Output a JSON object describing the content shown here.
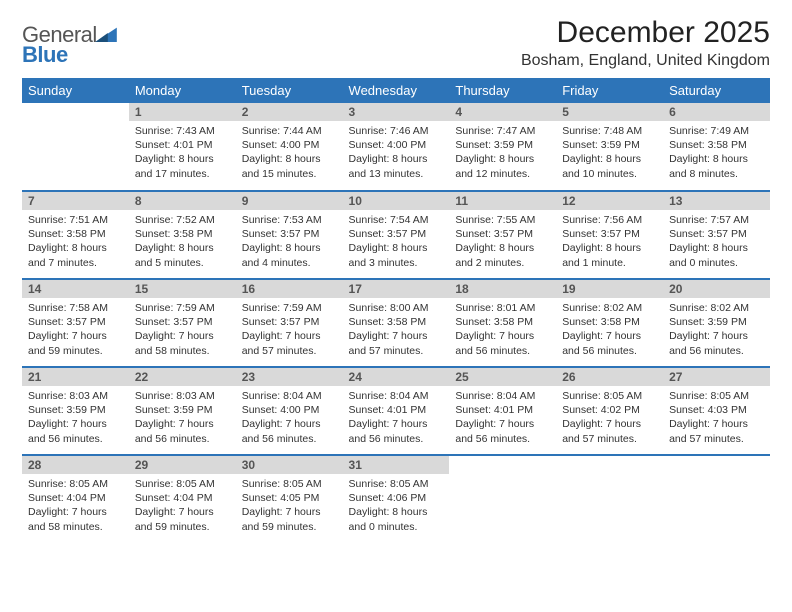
{
  "logo": {
    "line1": "General",
    "line2": "Blue"
  },
  "title": "December 2025",
  "location": "Bosham, England, United Kingdom",
  "colors": {
    "header_bg": "#2d74b8",
    "daynum_bg": "#d9d9d9",
    "logo_blue": "#2d74b8",
    "row_divider": "#2d74b8",
    "page_bg": "#ffffff"
  },
  "day_headers": [
    "Sunday",
    "Monday",
    "Tuesday",
    "Wednesday",
    "Thursday",
    "Friday",
    "Saturday"
  ],
  "weeks": [
    [
      null,
      {
        "n": "1",
        "sunrise": "Sunrise: 7:43 AM",
        "sunset": "Sunset: 4:01 PM",
        "day1": "Daylight: 8 hours",
        "day2": "and 17 minutes."
      },
      {
        "n": "2",
        "sunrise": "Sunrise: 7:44 AM",
        "sunset": "Sunset: 4:00 PM",
        "day1": "Daylight: 8 hours",
        "day2": "and 15 minutes."
      },
      {
        "n": "3",
        "sunrise": "Sunrise: 7:46 AM",
        "sunset": "Sunset: 4:00 PM",
        "day1": "Daylight: 8 hours",
        "day2": "and 13 minutes."
      },
      {
        "n": "4",
        "sunrise": "Sunrise: 7:47 AM",
        "sunset": "Sunset: 3:59 PM",
        "day1": "Daylight: 8 hours",
        "day2": "and 12 minutes."
      },
      {
        "n": "5",
        "sunrise": "Sunrise: 7:48 AM",
        "sunset": "Sunset: 3:59 PM",
        "day1": "Daylight: 8 hours",
        "day2": "and 10 minutes."
      },
      {
        "n": "6",
        "sunrise": "Sunrise: 7:49 AM",
        "sunset": "Sunset: 3:58 PM",
        "day1": "Daylight: 8 hours",
        "day2": "and 8 minutes."
      }
    ],
    [
      {
        "n": "7",
        "sunrise": "Sunrise: 7:51 AM",
        "sunset": "Sunset: 3:58 PM",
        "day1": "Daylight: 8 hours",
        "day2": "and 7 minutes."
      },
      {
        "n": "8",
        "sunrise": "Sunrise: 7:52 AM",
        "sunset": "Sunset: 3:58 PM",
        "day1": "Daylight: 8 hours",
        "day2": "and 5 minutes."
      },
      {
        "n": "9",
        "sunrise": "Sunrise: 7:53 AM",
        "sunset": "Sunset: 3:57 PM",
        "day1": "Daylight: 8 hours",
        "day2": "and 4 minutes."
      },
      {
        "n": "10",
        "sunrise": "Sunrise: 7:54 AM",
        "sunset": "Sunset: 3:57 PM",
        "day1": "Daylight: 8 hours",
        "day2": "and 3 minutes."
      },
      {
        "n": "11",
        "sunrise": "Sunrise: 7:55 AM",
        "sunset": "Sunset: 3:57 PM",
        "day1": "Daylight: 8 hours",
        "day2": "and 2 minutes."
      },
      {
        "n": "12",
        "sunrise": "Sunrise: 7:56 AM",
        "sunset": "Sunset: 3:57 PM",
        "day1": "Daylight: 8 hours",
        "day2": "and 1 minute."
      },
      {
        "n": "13",
        "sunrise": "Sunrise: 7:57 AM",
        "sunset": "Sunset: 3:57 PM",
        "day1": "Daylight: 8 hours",
        "day2": "and 0 minutes."
      }
    ],
    [
      {
        "n": "14",
        "sunrise": "Sunrise: 7:58 AM",
        "sunset": "Sunset: 3:57 PM",
        "day1": "Daylight: 7 hours",
        "day2": "and 59 minutes."
      },
      {
        "n": "15",
        "sunrise": "Sunrise: 7:59 AM",
        "sunset": "Sunset: 3:57 PM",
        "day1": "Daylight: 7 hours",
        "day2": "and 58 minutes."
      },
      {
        "n": "16",
        "sunrise": "Sunrise: 7:59 AM",
        "sunset": "Sunset: 3:57 PM",
        "day1": "Daylight: 7 hours",
        "day2": "and 57 minutes."
      },
      {
        "n": "17",
        "sunrise": "Sunrise: 8:00 AM",
        "sunset": "Sunset: 3:58 PM",
        "day1": "Daylight: 7 hours",
        "day2": "and 57 minutes."
      },
      {
        "n": "18",
        "sunrise": "Sunrise: 8:01 AM",
        "sunset": "Sunset: 3:58 PM",
        "day1": "Daylight: 7 hours",
        "day2": "and 56 minutes."
      },
      {
        "n": "19",
        "sunrise": "Sunrise: 8:02 AM",
        "sunset": "Sunset: 3:58 PM",
        "day1": "Daylight: 7 hours",
        "day2": "and 56 minutes."
      },
      {
        "n": "20",
        "sunrise": "Sunrise: 8:02 AM",
        "sunset": "Sunset: 3:59 PM",
        "day1": "Daylight: 7 hours",
        "day2": "and 56 minutes."
      }
    ],
    [
      {
        "n": "21",
        "sunrise": "Sunrise: 8:03 AM",
        "sunset": "Sunset: 3:59 PM",
        "day1": "Daylight: 7 hours",
        "day2": "and 56 minutes."
      },
      {
        "n": "22",
        "sunrise": "Sunrise: 8:03 AM",
        "sunset": "Sunset: 3:59 PM",
        "day1": "Daylight: 7 hours",
        "day2": "and 56 minutes."
      },
      {
        "n": "23",
        "sunrise": "Sunrise: 8:04 AM",
        "sunset": "Sunset: 4:00 PM",
        "day1": "Daylight: 7 hours",
        "day2": "and 56 minutes."
      },
      {
        "n": "24",
        "sunrise": "Sunrise: 8:04 AM",
        "sunset": "Sunset: 4:01 PM",
        "day1": "Daylight: 7 hours",
        "day2": "and 56 minutes."
      },
      {
        "n": "25",
        "sunrise": "Sunrise: 8:04 AM",
        "sunset": "Sunset: 4:01 PM",
        "day1": "Daylight: 7 hours",
        "day2": "and 56 minutes."
      },
      {
        "n": "26",
        "sunrise": "Sunrise: 8:05 AM",
        "sunset": "Sunset: 4:02 PM",
        "day1": "Daylight: 7 hours",
        "day2": "and 57 minutes."
      },
      {
        "n": "27",
        "sunrise": "Sunrise: 8:05 AM",
        "sunset": "Sunset: 4:03 PM",
        "day1": "Daylight: 7 hours",
        "day2": "and 57 minutes."
      }
    ],
    [
      {
        "n": "28",
        "sunrise": "Sunrise: 8:05 AM",
        "sunset": "Sunset: 4:04 PM",
        "day1": "Daylight: 7 hours",
        "day2": "and 58 minutes."
      },
      {
        "n": "29",
        "sunrise": "Sunrise: 8:05 AM",
        "sunset": "Sunset: 4:04 PM",
        "day1": "Daylight: 7 hours",
        "day2": "and 59 minutes."
      },
      {
        "n": "30",
        "sunrise": "Sunrise: 8:05 AM",
        "sunset": "Sunset: 4:05 PM",
        "day1": "Daylight: 7 hours",
        "day2": "and 59 minutes."
      },
      {
        "n": "31",
        "sunrise": "Sunrise: 8:05 AM",
        "sunset": "Sunset: 4:06 PM",
        "day1": "Daylight: 8 hours",
        "day2": "and 0 minutes."
      },
      null,
      null,
      null
    ]
  ]
}
